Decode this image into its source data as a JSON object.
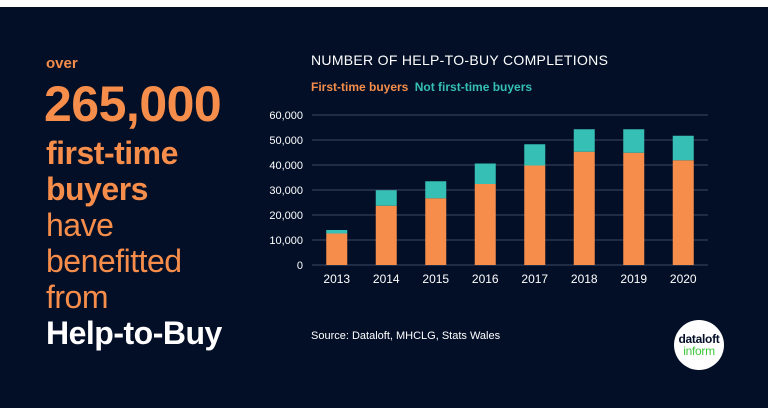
{
  "headline": {
    "over": "over",
    "number": "265,000",
    "lines": [
      "first-time",
      "buyers",
      "have",
      "benefitted",
      "from",
      "Help-to-Buy"
    ]
  },
  "source": "Source: Dataloft, MHCLG, Stats Wales",
  "logo": {
    "top": "dataloft",
    "bottom": "inform"
  },
  "colors": {
    "background": "#030f27",
    "first_time": "#f68d4a",
    "not_first_time": "#36bfb4",
    "logo_green": "#3cc43c"
  },
  "chart_data": {
    "type": "bar",
    "stacked": true,
    "title": "NUMBER OF HELP-TO-BUY COMPLETIONS",
    "categories": [
      "2013",
      "2014",
      "2015",
      "2016",
      "2017",
      "2018",
      "2019",
      "2020"
    ],
    "series": [
      {
        "name": "First-time buyers",
        "values": [
          12600,
          23700,
          26700,
          32400,
          39800,
          45300,
          44900,
          41900
        ]
      },
      {
        "name": "Not first-time buyers",
        "values": [
          1400,
          6200,
          6800,
          8200,
          8500,
          9000,
          9400,
          9800
        ]
      }
    ],
    "ylim": [
      0,
      60000
    ],
    "yticks": [
      "0",
      "10,000",
      "20,000",
      "30,000",
      "40,000",
      "50,000",
      "60,000"
    ],
    "grid": true,
    "legend": "top-left"
  }
}
